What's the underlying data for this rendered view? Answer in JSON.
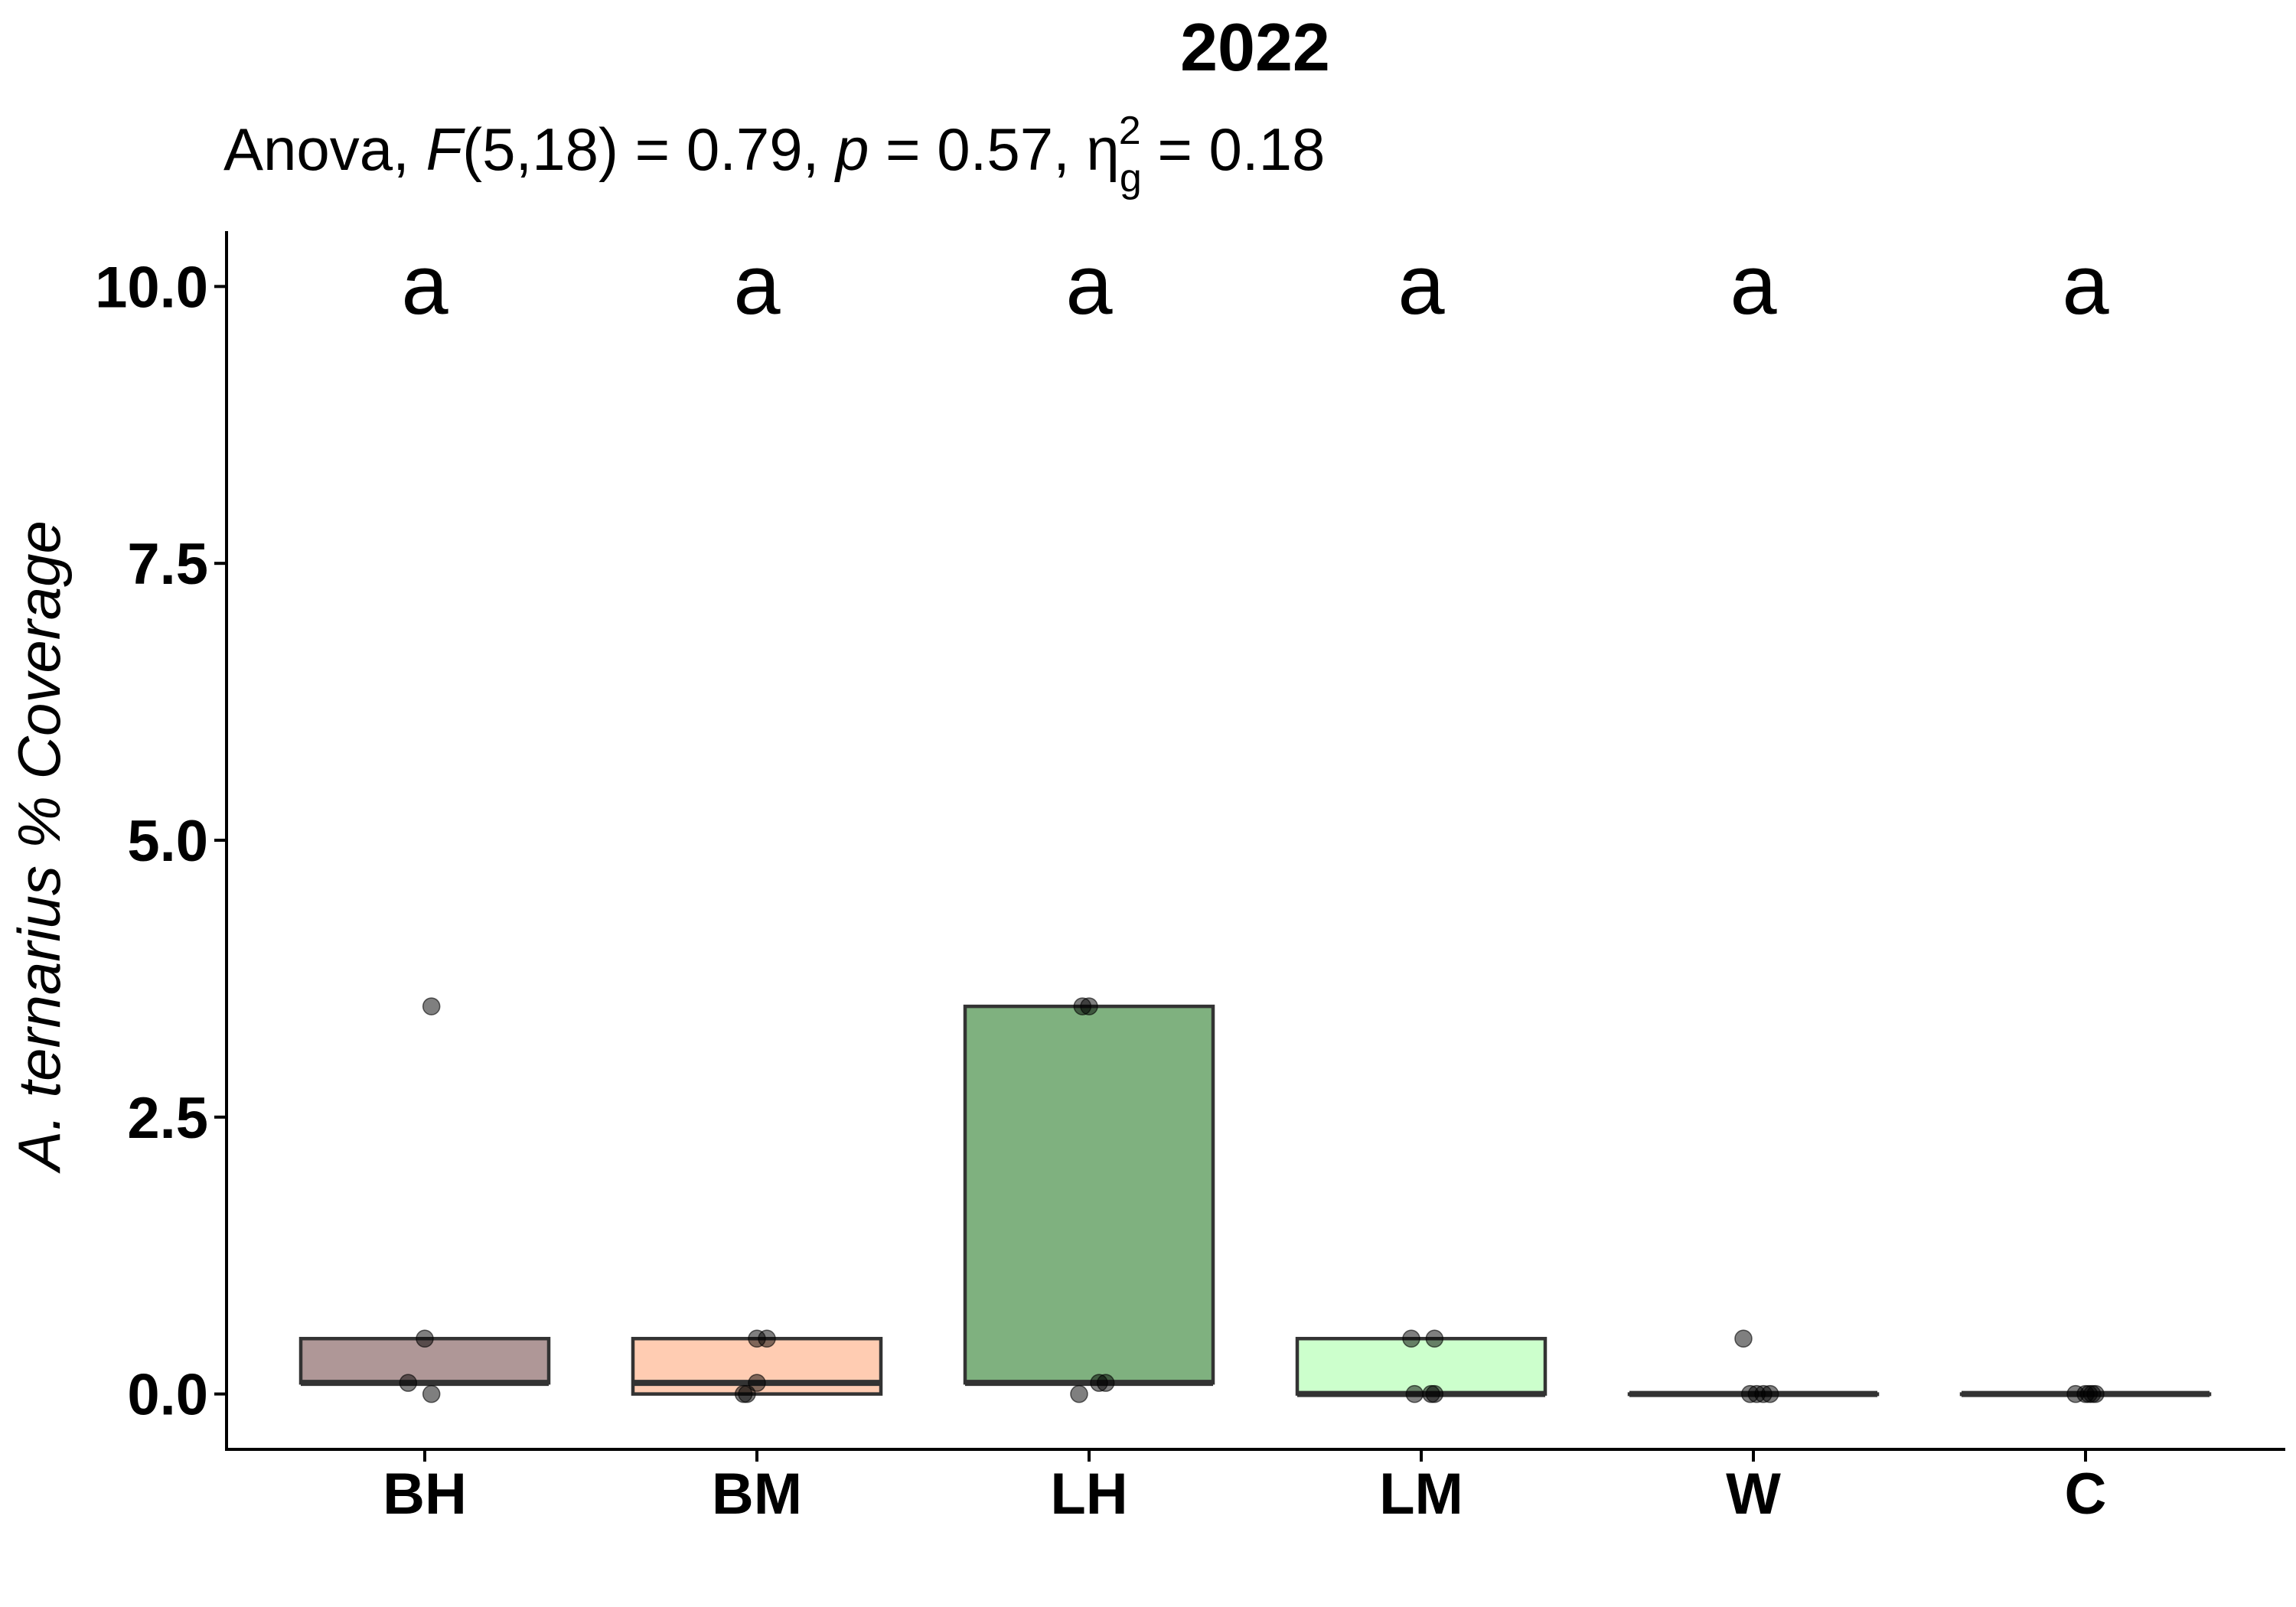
{
  "chart_data": {
    "type": "box",
    "title": "2022",
    "subtitle": {
      "test": "Anova, ",
      "stat": "F",
      "df": "(5,18) = 0.79, ",
      "p_label": "p",
      "p_value": " = 0.57, ",
      "effect": "η",
      "effect_sub": "g",
      "effect_sup": "2",
      "effect_value": " = 0.18"
    },
    "ylabel": "A. ternarius % Coverage",
    "xlabel": "",
    "ylim": [
      -0.5,
      10.5
    ],
    "yticks": [
      0.0,
      2.5,
      5.0,
      7.5,
      10.0
    ],
    "ytick_labels": [
      "0.0",
      "2.5",
      "5.0",
      "7.5",
      "10.0"
    ],
    "grid": false,
    "legend": "none",
    "groups": [
      {
        "name": "BH",
        "q1": 0.1,
        "median": 0.1,
        "q3": 0.5,
        "color": "#5F2F2F",
        "fill_opacity": 0.5,
        "letter": "a",
        "points": [
          {
            "x": 0.02,
            "y": 3.5
          },
          {
            "x": 0.0,
            "y": 0.5
          },
          {
            "x": -0.05,
            "y": 0.1
          },
          {
            "x": 0.02,
            "y": 0.0
          }
        ]
      },
      {
        "name": "BM",
        "q1": 0.0,
        "median": 0.1,
        "q3": 0.5,
        "color": "#FF9966",
        "fill_opacity": 0.5,
        "letter": "a",
        "points": [
          {
            "x": 0.0,
            "y": 0.5
          },
          {
            "x": 0.03,
            "y": 0.5
          },
          {
            "x": 0.0,
            "y": 0.1
          },
          {
            "x": -0.04,
            "y": 0.0
          },
          {
            "x": -0.03,
            "y": 0.0
          }
        ]
      },
      {
        "name": "LH",
        "q1": 0.1,
        "median": 0.1,
        "q3": 3.5,
        "color": "#006400",
        "fill_opacity": 0.5,
        "letter": "a",
        "points": [
          {
            "x": -0.02,
            "y": 3.5
          },
          {
            "x": 0.0,
            "y": 3.5
          },
          {
            "x": 0.03,
            "y": 0.1
          },
          {
            "x": 0.05,
            "y": 0.1
          },
          {
            "x": -0.03,
            "y": 0.0
          }
        ]
      },
      {
        "name": "LM",
        "q1": 0.0,
        "median": 0.0,
        "q3": 0.5,
        "color": "#99FF99",
        "fill_opacity": 0.5,
        "letter": "a",
        "points": [
          {
            "x": -0.03,
            "y": 0.5
          },
          {
            "x": 0.04,
            "y": 0.5
          },
          {
            "x": -0.02,
            "y": 0.0
          },
          {
            "x": 0.03,
            "y": 0.0
          },
          {
            "x": 0.04,
            "y": 0.0
          }
        ]
      },
      {
        "name": "W",
        "q1": 0.0,
        "median": 0.0,
        "q3": 0.0,
        "color": "#333333",
        "fill_opacity": 0.5,
        "letter": "a",
        "points": [
          {
            "x": -0.03,
            "y": 0.5
          },
          {
            "x": -0.01,
            "y": 0.0
          },
          {
            "x": 0.01,
            "y": 0.0
          },
          {
            "x": 0.03,
            "y": 0.0
          },
          {
            "x": 0.05,
            "y": 0.0
          }
        ]
      },
      {
        "name": "C",
        "q1": 0.0,
        "median": 0.0,
        "q3": 0.0,
        "color": "#333333",
        "fill_opacity": 0.5,
        "letter": "a",
        "points": [
          {
            "x": -0.03,
            "y": 0.0
          },
          {
            "x": 0.0,
            "y": 0.0
          },
          {
            "x": 0.01,
            "y": 0.0
          },
          {
            "x": 0.02,
            "y": 0.0
          },
          {
            "x": 0.03,
            "y": 0.0
          }
        ]
      }
    ]
  }
}
